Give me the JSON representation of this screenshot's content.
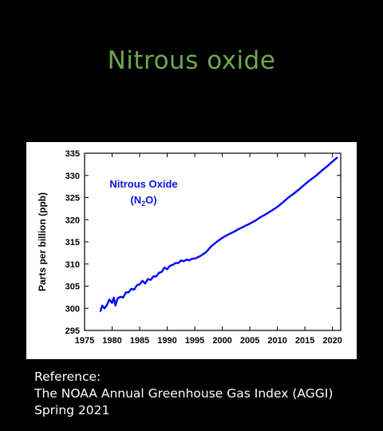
{
  "slide": {
    "title": "Nitrous oxide",
    "reference_lines": [
      "Reference:",
      "The NOAA Annual Greenhouse Gas Index (AGGI)",
      "Spring 2021"
    ]
  },
  "colors": {
    "background": "#000000",
    "title": "#6aa84f",
    "series": "#0000ff",
    "reference_text": "#ffffff"
  },
  "chart_data": {
    "type": "line",
    "annotation": {
      "line1": "Nitrous Oxide",
      "line2_prefix": "(N",
      "line2_sub": "2",
      "line2_suffix": "O)"
    },
    "ylabel": "Parts per billion (ppb)",
    "xlabel": "",
    "xlim": [
      1975,
      2021.5
    ],
    "ylim": [
      295,
      335
    ],
    "x_ticks": [
      1975,
      1980,
      1985,
      1990,
      1995,
      2000,
      2005,
      2010,
      2015,
      2020
    ],
    "y_ticks": [
      295,
      300,
      305,
      310,
      315,
      320,
      325,
      330,
      335
    ],
    "grid": false,
    "legend": "none",
    "series": [
      {
        "x": [
          1977.9,
          1978.2,
          1978.6,
          1979.0,
          1979.5,
          1980.0,
          1980.3,
          1980.6,
          1981.0,
          1981.5,
          1982.0,
          1982.5,
          1983.0,
          1983.5,
          1984.0,
          1984.5,
          1985.0,
          1985.5,
          1986.0,
          1986.5,
          1987.0,
          1987.5,
          1988.0,
          1988.5,
          1989.0,
          1989.5,
          1990.0,
          1990.5,
          1991.0,
          1991.5,
          1992.0,
          1992.5,
          1993.0,
          1993.5,
          1994.0,
          1994.5,
          1995.0,
          1996.0,
          1997.0,
          1998.0,
          1999.0,
          2000.0,
          2001.0,
          2002.0,
          2003.0,
          2004.0,
          2005.0,
          2006.0,
          2007.0,
          2008.0,
          2009.0,
          2010.0,
          2011.0,
          2012.0,
          2013.0,
          2014.0,
          2015.0,
          2016.0,
          2017.0,
          2018.0,
          2019.0,
          2020.0,
          2020.8
        ],
        "values": [
          299.4,
          300.6,
          300.0,
          300.6,
          302.0,
          301.2,
          302.4,
          300.6,
          302.2,
          302.6,
          302.4,
          303.6,
          303.6,
          304.4,
          304.2,
          305.2,
          305.4,
          306.2,
          305.6,
          306.6,
          306.4,
          307.2,
          307.2,
          308.0,
          308.2,
          309.2,
          308.8,
          309.6,
          309.8,
          310.2,
          310.2,
          310.8,
          310.6,
          311.0,
          310.8,
          311.2,
          311.2,
          311.8,
          312.6,
          314.0,
          315.0,
          315.9,
          316.6,
          317.2,
          317.9,
          318.5,
          319.1,
          319.8,
          320.6,
          321.3,
          322.1,
          322.9,
          323.9,
          325.0,
          325.9,
          326.9,
          328.0,
          329.0,
          329.9,
          331.0,
          332.0,
          333.1,
          334.0
        ]
      }
    ]
  }
}
